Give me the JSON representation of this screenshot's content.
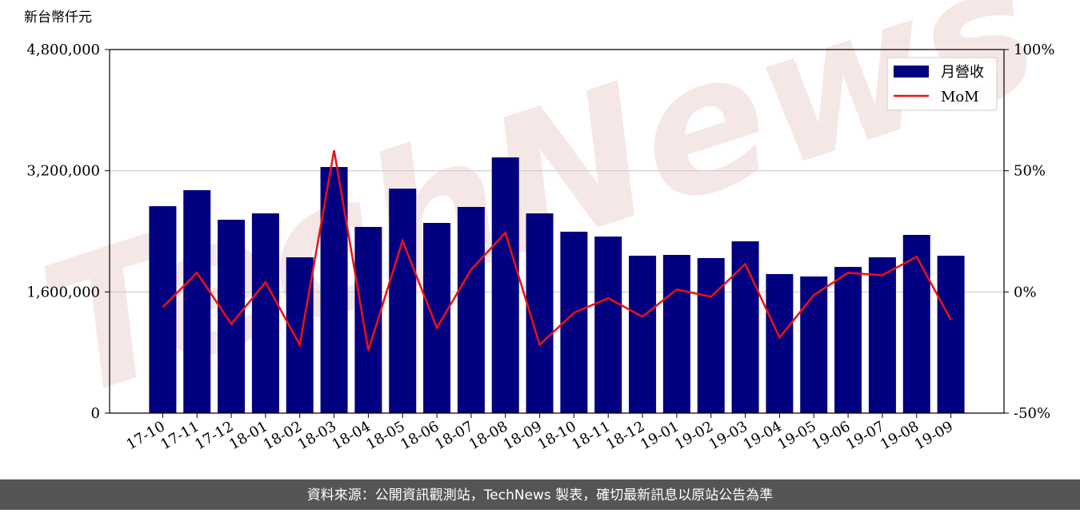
{
  "chart_data": {
    "type": "bar_line",
    "y_axis_label": "新台幣仟元",
    "watermark": "TechNews",
    "source": "資料來源：公開資訊觀測站，TechNews 製表，確切最新訊息以原站公告為準",
    "categories": [
      "17-10",
      "17-11",
      "17-12",
      "18-01",
      "18-02",
      "18-03",
      "18-04",
      "18-05",
      "18-06",
      "18-07",
      "18-08",
      "18-09",
      "18-10",
      "18-11",
      "18-12",
      "19-01",
      "19-02",
      "19-03",
      "19-04",
      "19-05",
      "19-06",
      "19-07",
      "19-08",
      "19-09"
    ],
    "series": [
      {
        "name": "月營收",
        "type": "bar",
        "color": "#000080",
        "values": [
          2732000,
          2943000,
          2553000,
          2637000,
          2057000,
          3249000,
          2458000,
          2964000,
          2511000,
          2722000,
          3376000,
          2637000,
          2395000,
          2331000,
          2078000,
          2089000,
          2047000,
          2268000,
          1836000,
          1804000,
          1930000,
          2057000,
          2353000,
          2078000
        ]
      },
      {
        "name": "MoM",
        "type": "line",
        "axis": "y2",
        "color": "#ee1111",
        "values": [
          -6.3,
          7.9,
          -13.2,
          4.0,
          -21.8,
          58.4,
          -24.1,
          21.1,
          -14.8,
          9.2,
          24.4,
          -21.8,
          -8.6,
          -2.6,
          -10.2,
          1.0,
          -2.0,
          11.5,
          -18.8,
          -1.3,
          7.9,
          6.9,
          14.5,
          -11.5
        ]
      }
    ],
    "ylim": [
      0,
      4800000
    ],
    "yticks": [
      0,
      {
        "value": 1600000,
        "label": "1,600,000"
      },
      {
        "value": 3200000,
        "label": "3,200,000"
      },
      {
        "value": 4800000,
        "label": "4,800,000"
      }
    ],
    "y2lim": [
      -50,
      100
    ],
    "y2ticks": [
      {
        "value": -50,
        "label": "-50%"
      },
      {
        "value": 0,
        "label": "0%"
      },
      {
        "value": 50,
        "label": "50%"
      },
      {
        "value": 100,
        "label": "100%"
      }
    ],
    "grid": true,
    "legend": "upper right"
  }
}
